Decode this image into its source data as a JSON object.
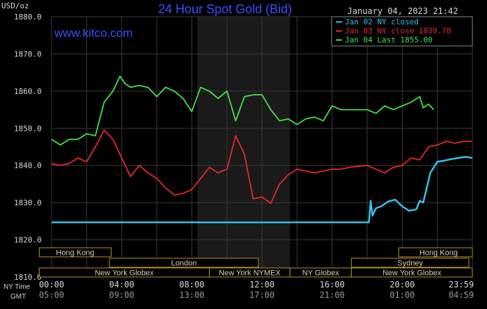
{
  "colors": {
    "background": "#000000",
    "grid": "#3a3a3a",
    "text": "#d8d8d8",
    "title": "#3a4fff",
    "site": "#3a4fff",
    "jan02": "#38bfe8",
    "jan03": "#e8262a",
    "jan04": "#48e048",
    "session_fill": "#1a1a1a",
    "bar_border": "#b8922a",
    "bar_text": "#d8cfb0"
  },
  "chart_data": {
    "type": "line",
    "title": "24 Hour Spot Gold (Bid)",
    "ylabel": "USD/oz",
    "site": "www.kitco.com",
    "timestamp": "January 04, 2023 21:42",
    "ylim": [
      1810,
      1880
    ],
    "yticks": [
      "1880.0",
      "1870.0",
      "1860.0",
      "1850.0",
      "1840.0",
      "1830.0",
      "1820.0",
      "1810.0"
    ],
    "x_ny_label": "NY Time",
    "x_gmt_label": "GMT",
    "x_ny_ticks": [
      "00:00",
      "04:00",
      "08:00",
      "12:00",
      "16:00",
      "20:00",
      "23:59"
    ],
    "x_gmt_ticks": [
      "05:00",
      "09:00",
      "13:00",
      "17:00",
      "21:00",
      "01:00",
      "04:59"
    ],
    "x_tick_hours": [
      0,
      4,
      8,
      12,
      16,
      20,
      23.98
    ],
    "shaded_sessions": [
      [
        8.3,
        13.6
      ]
    ],
    "legend": [
      {
        "key": "jan02",
        "label": "Jan 02 NY closed"
      },
      {
        "key": "jan03",
        "label": "Jan 03 NY close 1839.70"
      },
      {
        "key": "jan04",
        "label": "Jan 04 Last 1855.00"
      }
    ],
    "series": [
      {
        "key": "jan02",
        "x": [
          0,
          18.1,
          18.2,
          18.3,
          18.5,
          18.8,
          19.2,
          19.6,
          20.0,
          20.4,
          20.8,
          21.0,
          21.2,
          21.6,
          22.0,
          22.4,
          22.8,
          23.2,
          23.6,
          24.0
        ],
        "y": [
          1824.7,
          1824.7,
          1830.5,
          1826.5,
          1828.5,
          1829.0,
          1830.3,
          1830.8,
          1829.0,
          1827.8,
          1828.2,
          1830.5,
          1830.0,
          1838.0,
          1841.0,
          1841.3,
          1841.7,
          1842.0,
          1842.3,
          1842.0
        ]
      },
      {
        "key": "jan03",
        "x": [
          0,
          0.5,
          1.0,
          1.5,
          2.0,
          2.5,
          3.0,
          3.5,
          4.0,
          4.5,
          5.0,
          5.5,
          6.0,
          6.5,
          7.0,
          7.5,
          8.0,
          8.5,
          9.0,
          9.5,
          10.0,
          10.5,
          11.0,
          11.5,
          12.0,
          12.5,
          13.0,
          13.5,
          14.0,
          15.0,
          16.0,
          16.5,
          17.0,
          18.0,
          19.0,
          19.5,
          20.0,
          20.5,
          21.0,
          21.5,
          22.0,
          22.5,
          23.0,
          23.5,
          24.0
        ],
        "y": [
          1840.5,
          1840.0,
          1840.5,
          1842.0,
          1841.0,
          1845.0,
          1849.5,
          1847.0,
          1842.0,
          1837.0,
          1840.0,
          1838.0,
          1836.5,
          1834.0,
          1832.0,
          1832.5,
          1833.5,
          1836.5,
          1839.5,
          1838.0,
          1839.0,
          1848.0,
          1843.0,
          1831.0,
          1831.5,
          1829.8,
          1835.0,
          1837.5,
          1839.0,
          1838.0,
          1839.0,
          1839.0,
          1839.5,
          1840.0,
          1838.0,
          1839.5,
          1840.0,
          1842.0,
          1841.5,
          1845.0,
          1845.5,
          1846.5,
          1846.0,
          1846.5,
          1846.5
        ]
      },
      {
        "key": "jan04",
        "x": [
          0,
          0.5,
          1.0,
          1.5,
          2.0,
          2.5,
          3.0,
          3.5,
          3.9,
          4.2,
          4.5,
          5.0,
          5.5,
          6.0,
          6.5,
          7.0,
          7.5,
          8.0,
          8.5,
          9.0,
          9.5,
          10.0,
          10.5,
          11.0,
          11.5,
          12.0,
          12.5,
          13.0,
          13.5,
          14.0,
          14.5,
          15.0,
          15.5,
          16.0,
          16.5,
          17.0,
          17.5,
          18.0,
          18.5,
          19.0,
          19.5,
          20.0,
          20.5,
          21.0,
          21.2,
          21.5,
          21.8
        ],
        "y": [
          1847.0,
          1845.5,
          1847.0,
          1847.0,
          1848.5,
          1848.0,
          1857.0,
          1860.0,
          1864.0,
          1862.0,
          1861.0,
          1861.5,
          1861.0,
          1858.5,
          1861.0,
          1860.0,
          1858.0,
          1854.5,
          1861.0,
          1860.0,
          1858.0,
          1860.0,
          1852.0,
          1858.5,
          1859.0,
          1859.0,
          1855.0,
          1852.0,
          1852.5,
          1851.0,
          1852.5,
          1853.0,
          1852.0,
          1856.0,
          1855.0,
          1855.0,
          1855.0,
          1855.0,
          1854.0,
          1856.0,
          1855.0,
          1856.0,
          1857.0,
          1858.5,
          1855.5,
          1856.5,
          1855.0
        ]
      }
    ],
    "market_rows": [
      [
        {
          "label": "Hong Kong",
          "start": -0.7,
          "end": 3.4,
          "align": "start"
        },
        {
          "label": "Hong Kong",
          "start": 19.8,
          "end": 24.0,
          "align": "end"
        }
      ],
      [
        {
          "label": "London",
          "start": 3.3,
          "end": 11.8,
          "align": "middle"
        },
        {
          "label": "Sydney",
          "start": 17.1,
          "end": 23.8,
          "align": "middle"
        }
      ],
      [
        {
          "label": "New York Globex",
          "start": -0.7,
          "end": 9.0,
          "align": "middle"
        },
        {
          "label": "New York NYMEX",
          "start": 9.0,
          "end": 13.6,
          "align": "middle"
        },
        {
          "label": "NY Globex",
          "start": 13.6,
          "end": 17.1,
          "align": "middle"
        },
        {
          "label": "New York Globex",
          "start": 17.1,
          "end": 24.0,
          "align": "middle"
        }
      ]
    ]
  }
}
